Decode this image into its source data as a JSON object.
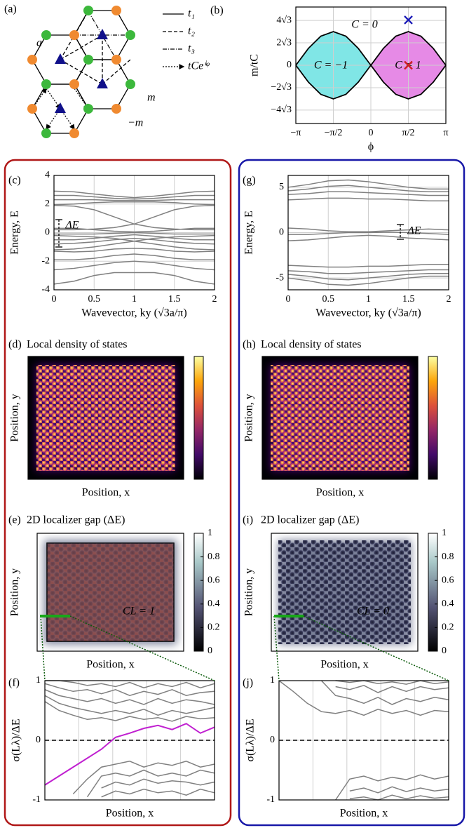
{
  "diagram": {
    "label": "(a)",
    "legend": [
      "t₁",
      "t₂",
      "t₃",
      "tCeⁱᵠ"
    ],
    "annotations": [
      "a",
      "m",
      "−m"
    ]
  },
  "chart_data": [
    {
      "type": "area",
      "label": "(b)",
      "xlabel": "ϕ",
      "ylabel": "m/tC",
      "color": "#000000",
      "x": [
        -3.1416,
        -2.618,
        -2.0944,
        -1.5708,
        -1.0472,
        -0.5236,
        0,
        0.5236,
        1.0472,
        1.5708,
        2.0944,
        2.618,
        3.1416
      ],
      "series": [
        {
          "values": [
            0,
            2.598,
            4.5,
            5.196,
            4.5,
            2.598,
            0,
            2.598,
            4.5,
            5.196,
            4.5,
            2.598,
            0
          ]
        },
        {
          "values": [
            0,
            -2.598,
            -4.5,
            -5.196,
            -4.5,
            -2.598,
            0,
            -2.598,
            -4.5,
            -5.196,
            -4.5,
            -2.598,
            0
          ]
        }
      ],
      "regions": [
        {
          "label": "C = −1",
          "color": "#80e6e6"
        },
        {
          "label": "C = 1",
          "color": "#e68ae6"
        }
      ],
      "annotations": [
        "C = 0"
      ],
      "markers": [
        {
          "x": 1.5708,
          "y": 7,
          "color": "#1c1cb8"
        },
        {
          "x": 1.5708,
          "y": 0,
          "color": "#cc1f1f"
        }
      ],
      "xlim": [
        -3.1416,
        3.1416
      ],
      "xticks": [
        {
          "value": -3.1416,
          "label": "−π"
        },
        {
          "value": -1.5708,
          "label": "−π/2"
        },
        0,
        {
          "value": 1.5708,
          "label": "π/2"
        },
        {
          "value": 3.1416,
          "label": "π"
        }
      ],
      "ylim": [
        -9,
        9
      ],
      "yticks": [
        {
          "value": -6.928,
          "label": "−4√3"
        },
        {
          "value": -3.464,
          "label": "−2√3"
        },
        0,
        {
          "value": 3.464,
          "label": "2√3"
        },
        {
          "value": 6.928,
          "label": "4√3"
        }
      ],
      "grid": true
    },
    {
      "type": "line",
      "label": "(c)",
      "xlabel": "Wavevector, ky (√3a/π)",
      "ylabel": "Energy, E",
      "annotations": [
        "ΔE"
      ],
      "color": "#808080",
      "x": [
        0,
        0.25,
        0.5,
        0.75,
        1,
        1.25,
        1.5,
        1.75,
        2
      ],
      "series": [
        {
          "values": [
            2.9,
            2.85,
            2.7,
            2.55,
            2.45,
            2.55,
            2.7,
            2.85,
            2.9
          ]
        },
        {
          "values": [
            2.6,
            2.6,
            2.5,
            2.4,
            2.35,
            2.4,
            2.5,
            2.6,
            2.6
          ]
        },
        {
          "values": [
            2.3,
            2.3,
            2.3,
            2.25,
            2.25,
            2.25,
            2.3,
            2.3,
            2.3
          ]
        },
        {
          "values": [
            1.95,
            2.0,
            2.1,
            2.15,
            2.15,
            2.15,
            2.1,
            2.0,
            1.95
          ]
        },
        {
          "values": [
            1.9,
            1.85,
            1.6,
            1.1,
            0.6,
            0.35,
            0.25,
            0.2,
            0.2
          ]
        },
        {
          "values": [
            0.2,
            0.2,
            0.25,
            0.35,
            0.6,
            1.1,
            1.6,
            1.85,
            1.9
          ]
        },
        {
          "values": [
            0.3,
            0.3,
            0.2,
            0.1,
            0.05,
            0.1,
            0.2,
            0.3,
            0.3
          ]
        },
        {
          "values": [
            -0.1,
            -0.1,
            -0.1,
            -0.05,
            0,
            -0.05,
            -0.1,
            -0.1,
            -0.1
          ]
        },
        {
          "values": [
            -0.5,
            -0.5,
            -0.4,
            -0.25,
            -0.15,
            -0.25,
            -0.4,
            -0.5,
            -0.5
          ]
        },
        {
          "values": [
            -0.8,
            -0.75,
            -0.65,
            -0.5,
            -0.4,
            -0.5,
            -0.65,
            -0.75,
            -0.8
          ]
        },
        {
          "values": [
            -1.2,
            -1.15,
            -1.0,
            -0.8,
            -0.6,
            -0.4,
            -0.3,
            -0.25,
            -0.2
          ]
        },
        {
          "values": [
            -0.2,
            -0.25,
            -0.3,
            -0.4,
            -0.6,
            -0.8,
            -1.0,
            -1.15,
            -1.2
          ]
        },
        {
          "values": [
            -1.3,
            -1.35,
            -1.3,
            -1.15,
            -1.1,
            -1.15,
            -1.3,
            -1.35,
            -1.3
          ]
        },
        {
          "values": [
            -1.9,
            -1.9,
            -1.8,
            -1.6,
            -1.5,
            -1.6,
            -1.8,
            -1.9,
            -1.9
          ]
        },
        {
          "values": [
            -2.6,
            -2.5,
            -2.3,
            -2.1,
            -2.0,
            -2.1,
            -2.3,
            -2.5,
            -2.6
          ]
        },
        {
          "values": [
            -3.6,
            -3.4,
            -3.0,
            -2.8,
            -2.8,
            -2.8,
            -3.0,
            -3.4,
            -3.6
          ]
        }
      ],
      "xlim": [
        0,
        2
      ],
      "xticks": [
        0,
        0.5,
        1,
        1.5,
        2
      ],
      "ylim": [
        -4,
        4
      ],
      "yticks": [
        -4,
        -2,
        0,
        2,
        4
      ],
      "grid": true
    },
    {
      "type": "heatmap",
      "label": "(d)",
      "title": "Local density of states",
      "xlabel": "Position, x",
      "ylabel": "Position, y",
      "colormap": "inferno"
    },
    {
      "type": "heatmap",
      "label": "(e)",
      "title": "2D localizer gap (ΔE)",
      "xlabel": "Position, x",
      "ylabel": "Position, y",
      "colormap": "bone",
      "annotations": [
        "CL = 1"
      ],
      "highlight_color": "#8c4e4e",
      "clim": [
        0,
        1
      ],
      "cticks": [
        0,
        0.2,
        0.4,
        0.6,
        0.8,
        1
      ]
    },
    {
      "type": "line",
      "label": "(f)",
      "xlabel": "Position, x",
      "ylabel": "σ(Lλ)/ΔE",
      "color": "#808080",
      "hline": 0,
      "series": [
        {
          "values": [
            1.0,
            1.0,
            0.97,
            0.92,
            0.95,
            0.9,
            0.97,
            0.88,
            0.95,
            0.9,
            0.97,
            0.88,
            0.95
          ]
        },
        {
          "values": [
            0.95,
            0.88,
            0.82,
            0.85,
            0.78,
            0.85,
            0.75,
            0.82,
            0.77,
            0.85,
            0.75,
            0.8,
            0.82
          ]
        },
        {
          "values": [
            0.85,
            0.75,
            0.7,
            0.65,
            0.7,
            0.62,
            0.68,
            0.6,
            0.7,
            0.62,
            0.68,
            0.65,
            0.6
          ]
        },
        {
          "values": [
            0.75,
            0.62,
            0.55,
            0.5,
            0.45,
            0.5,
            0.45,
            0.52,
            0.42,
            0.5,
            0.45,
            0.5,
            0.55
          ]
        },
        {
          "values": [
            0.65,
            0.5,
            0.42,
            0.35,
            0.38,
            0.33,
            0.4,
            0.35,
            0.38,
            0.32,
            0.4,
            0.36,
            0.38
          ]
        },
        {
          "values": [
            -0.75,
            -0.6,
            -0.45,
            -0.3,
            -0.15,
            0.05,
            0.12,
            0.2,
            0.25,
            0.18,
            0.28,
            0.12,
            0.22
          ],
          "color": "#c020d0"
        },
        {
          "values": [
            null,
            null,
            -0.9,
            -0.65,
            -0.45,
            -0.4,
            -0.35,
            -0.45,
            -0.38,
            -0.42,
            -0.35,
            -0.45,
            -0.4
          ]
        },
        {
          "values": [
            null,
            null,
            null,
            -0.95,
            -0.6,
            -0.55,
            -0.6,
            -0.5,
            -0.6,
            -0.55,
            -0.6,
            -0.5,
            -0.55
          ]
        },
        {
          "values": [
            null,
            null,
            null,
            null,
            -0.8,
            -0.7,
            -0.75,
            -0.65,
            -0.72,
            -0.68,
            -0.7,
            -0.75,
            -0.7
          ]
        },
        {
          "values": [
            null,
            null,
            null,
            null,
            -0.95,
            -0.85,
            -0.9,
            -0.82,
            -0.88,
            -0.85,
            -0.92,
            -0.82,
            -0.88
          ]
        }
      ],
      "ylim": [
        -1,
        1
      ],
      "yticks": [
        -1,
        0,
        1
      ],
      "grid": true
    },
    {
      "type": "line",
      "label": "(g)",
      "xlabel": "Wavevector, ky (√3a/π)",
      "ylabel": "Energy, E",
      "annotations": [
        "ΔE"
      ],
      "color": "#808080",
      "x": [
        0,
        0.25,
        0.5,
        0.75,
        1,
        1.25,
        1.5,
        1.75,
        2
      ],
      "series": [
        {
          "values": [
            5.0,
            5.3,
            5.7,
            5.8,
            5.6,
            5.3,
            5.0,
            4.8,
            4.8
          ]
        },
        {
          "values": [
            4.6,
            4.8,
            5.1,
            5.2,
            5.0,
            4.8,
            4.6,
            4.5,
            4.5
          ]
        },
        {
          "values": [
            4.2,
            4.3,
            4.5,
            4.5,
            4.4,
            4.3,
            4.2,
            4.1,
            4.1
          ]
        },
        {
          "values": [
            3.6,
            3.7,
            3.8,
            3.8,
            3.7,
            3.7,
            3.6,
            3.5,
            3.5
          ]
        },
        {
          "values": [
            0.5,
            0.4,
            0.2,
            0.1,
            0.1,
            0.2,
            0.3,
            0.4,
            0.3
          ]
        },
        {
          "values": [
            -0.2,
            -0.2,
            -0.1,
            0,
            0,
            0.05,
            0,
            -0.1,
            -0.2
          ]
        },
        {
          "values": [
            -0.9,
            -0.8,
            -0.6,
            -0.4,
            -0.3,
            -0.4,
            -0.6,
            -0.7,
            -0.8
          ]
        },
        {
          "values": [
            -3.6,
            -3.7,
            -3.8,
            -3.8,
            -3.7,
            -3.7,
            -3.6,
            -3.5,
            -3.5
          ]
        },
        {
          "values": [
            -4.2,
            -4.3,
            -4.5,
            -4.5,
            -4.4,
            -4.3,
            -4.2,
            -4.1,
            -4.1
          ]
        },
        {
          "values": [
            -4.6,
            -4.8,
            -5.1,
            -5.2,
            -5.0,
            -4.8,
            -4.6,
            -4.5,
            -4.5
          ]
        },
        {
          "values": [
            -5.0,
            -5.3,
            -5.7,
            -5.8,
            -5.6,
            -5.3,
            -5.0,
            -4.8,
            -4.8
          ]
        }
      ],
      "xlim": [
        0,
        2
      ],
      "xticks": [
        0,
        0.5,
        1,
        1.5,
        2
      ],
      "ylim": [
        -6.3,
        6.3
      ],
      "yticks": [
        -5,
        0,
        5
      ],
      "grid": true
    },
    {
      "type": "heatmap",
      "label": "(h)",
      "title": "Local density of states",
      "xlabel": "Position, x",
      "ylabel": "Position, y",
      "colormap": "inferno"
    },
    {
      "type": "heatmap",
      "label": "(i)",
      "title": "2D localizer gap (ΔE)",
      "xlabel": "Position, x",
      "ylabel": "Position, y",
      "colormap": "bone",
      "annotations": [
        "CL = 0"
      ],
      "clim": [
        0,
        1
      ],
      "cticks": [
        0,
        0.2,
        0.4,
        0.6,
        0.8,
        1
      ]
    },
    {
      "type": "line",
      "label": "(j)",
      "xlabel": "Position, x",
      "ylabel": "σ(Lλ)/ΔE",
      "color": "#808080",
      "hline": 0,
      "series": [
        {
          "values": [
            1.0,
            0.82,
            0.62,
            0.48,
            0.45,
            0.5,
            0.42,
            0.52,
            0.45,
            0.5,
            0.42,
            0.5,
            0.48
          ]
        },
        {
          "values": [
            null,
            null,
            null,
            1.0,
            0.75,
            0.7,
            0.62,
            0.72,
            0.6,
            0.7,
            0.65,
            0.72,
            0.68
          ]
        },
        {
          "values": [
            null,
            null,
            null,
            null,
            0.9,
            0.85,
            0.92,
            0.8,
            0.9,
            0.82,
            0.9,
            0.85,
            0.88
          ]
        },
        {
          "values": [
            null,
            null,
            null,
            null,
            1.0,
            0.97,
            1.0,
            0.95,
            0.98,
            0.94,
            1.0,
            0.95,
            0.98
          ]
        },
        {
          "values": [
            null,
            null,
            null,
            null,
            -1,
            -0.65,
            -0.6,
            -0.68,
            -0.62,
            -0.66,
            -0.58,
            -0.65,
            -0.6
          ]
        },
        {
          "values": [
            null,
            null,
            null,
            null,
            null,
            -0.85,
            -0.8,
            -0.88,
            -0.78,
            -0.86,
            -0.8,
            -0.85,
            -0.82
          ]
        },
        {
          "values": [
            null,
            null,
            null,
            null,
            null,
            -0.98,
            -0.95,
            -1.0,
            -0.92,
            -0.98,
            -0.93,
            -0.97,
            -0.95
          ]
        }
      ],
      "ylim": [
        -1,
        1
      ],
      "yticks": [
        -1,
        0,
        1
      ],
      "grid": true
    }
  ]
}
